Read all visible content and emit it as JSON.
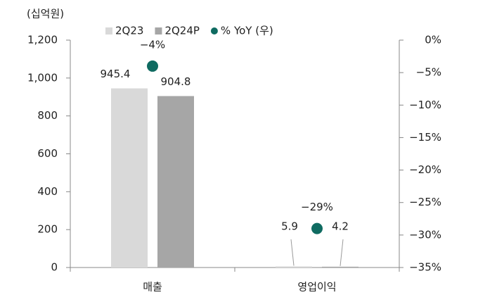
{
  "chart_data": {
    "type": "bar",
    "unit_label": "(십억원)",
    "categories": [
      "매출",
      "영업이익"
    ],
    "series": [
      {
        "name": "2Q23",
        "color": "#d9d9d9",
        "values": [
          945.4,
          5.9
        ]
      },
      {
        "name": "2Q24P",
        "color": "#a6a6a6",
        "values": [
          904.8,
          4.2
        ]
      },
      {
        "name": "% YoY (우)",
        "type": "scatter",
        "axis": "y2",
        "color": "#0f6b61",
        "values": [
          -4,
          -29
        ],
        "value_labels": [
          "−4%",
          "−29%"
        ]
      }
    ],
    "ylim": [
      0,
      1200
    ],
    "yticks": [
      0,
      200,
      400,
      600,
      800,
      {
        "value": 1000,
        "label": "1,000"
      },
      {
        "value": 1200,
        "label": "1,200"
      }
    ],
    "y2lim": [
      -35,
      0
    ],
    "y2ticks": [
      {
        "value": -35,
        "label": "−35%"
      },
      {
        "value": -30,
        "label": "−30%"
      },
      {
        "value": -25,
        "label": "−25%"
      },
      {
        "value": -20,
        "label": "−20%"
      },
      {
        "value": -15,
        "label": "−15%"
      },
      {
        "value": -10,
        "label": "−10%"
      },
      {
        "value": -5,
        "label": "−5%"
      },
      {
        "value": 0,
        "label": "0%"
      }
    ]
  }
}
